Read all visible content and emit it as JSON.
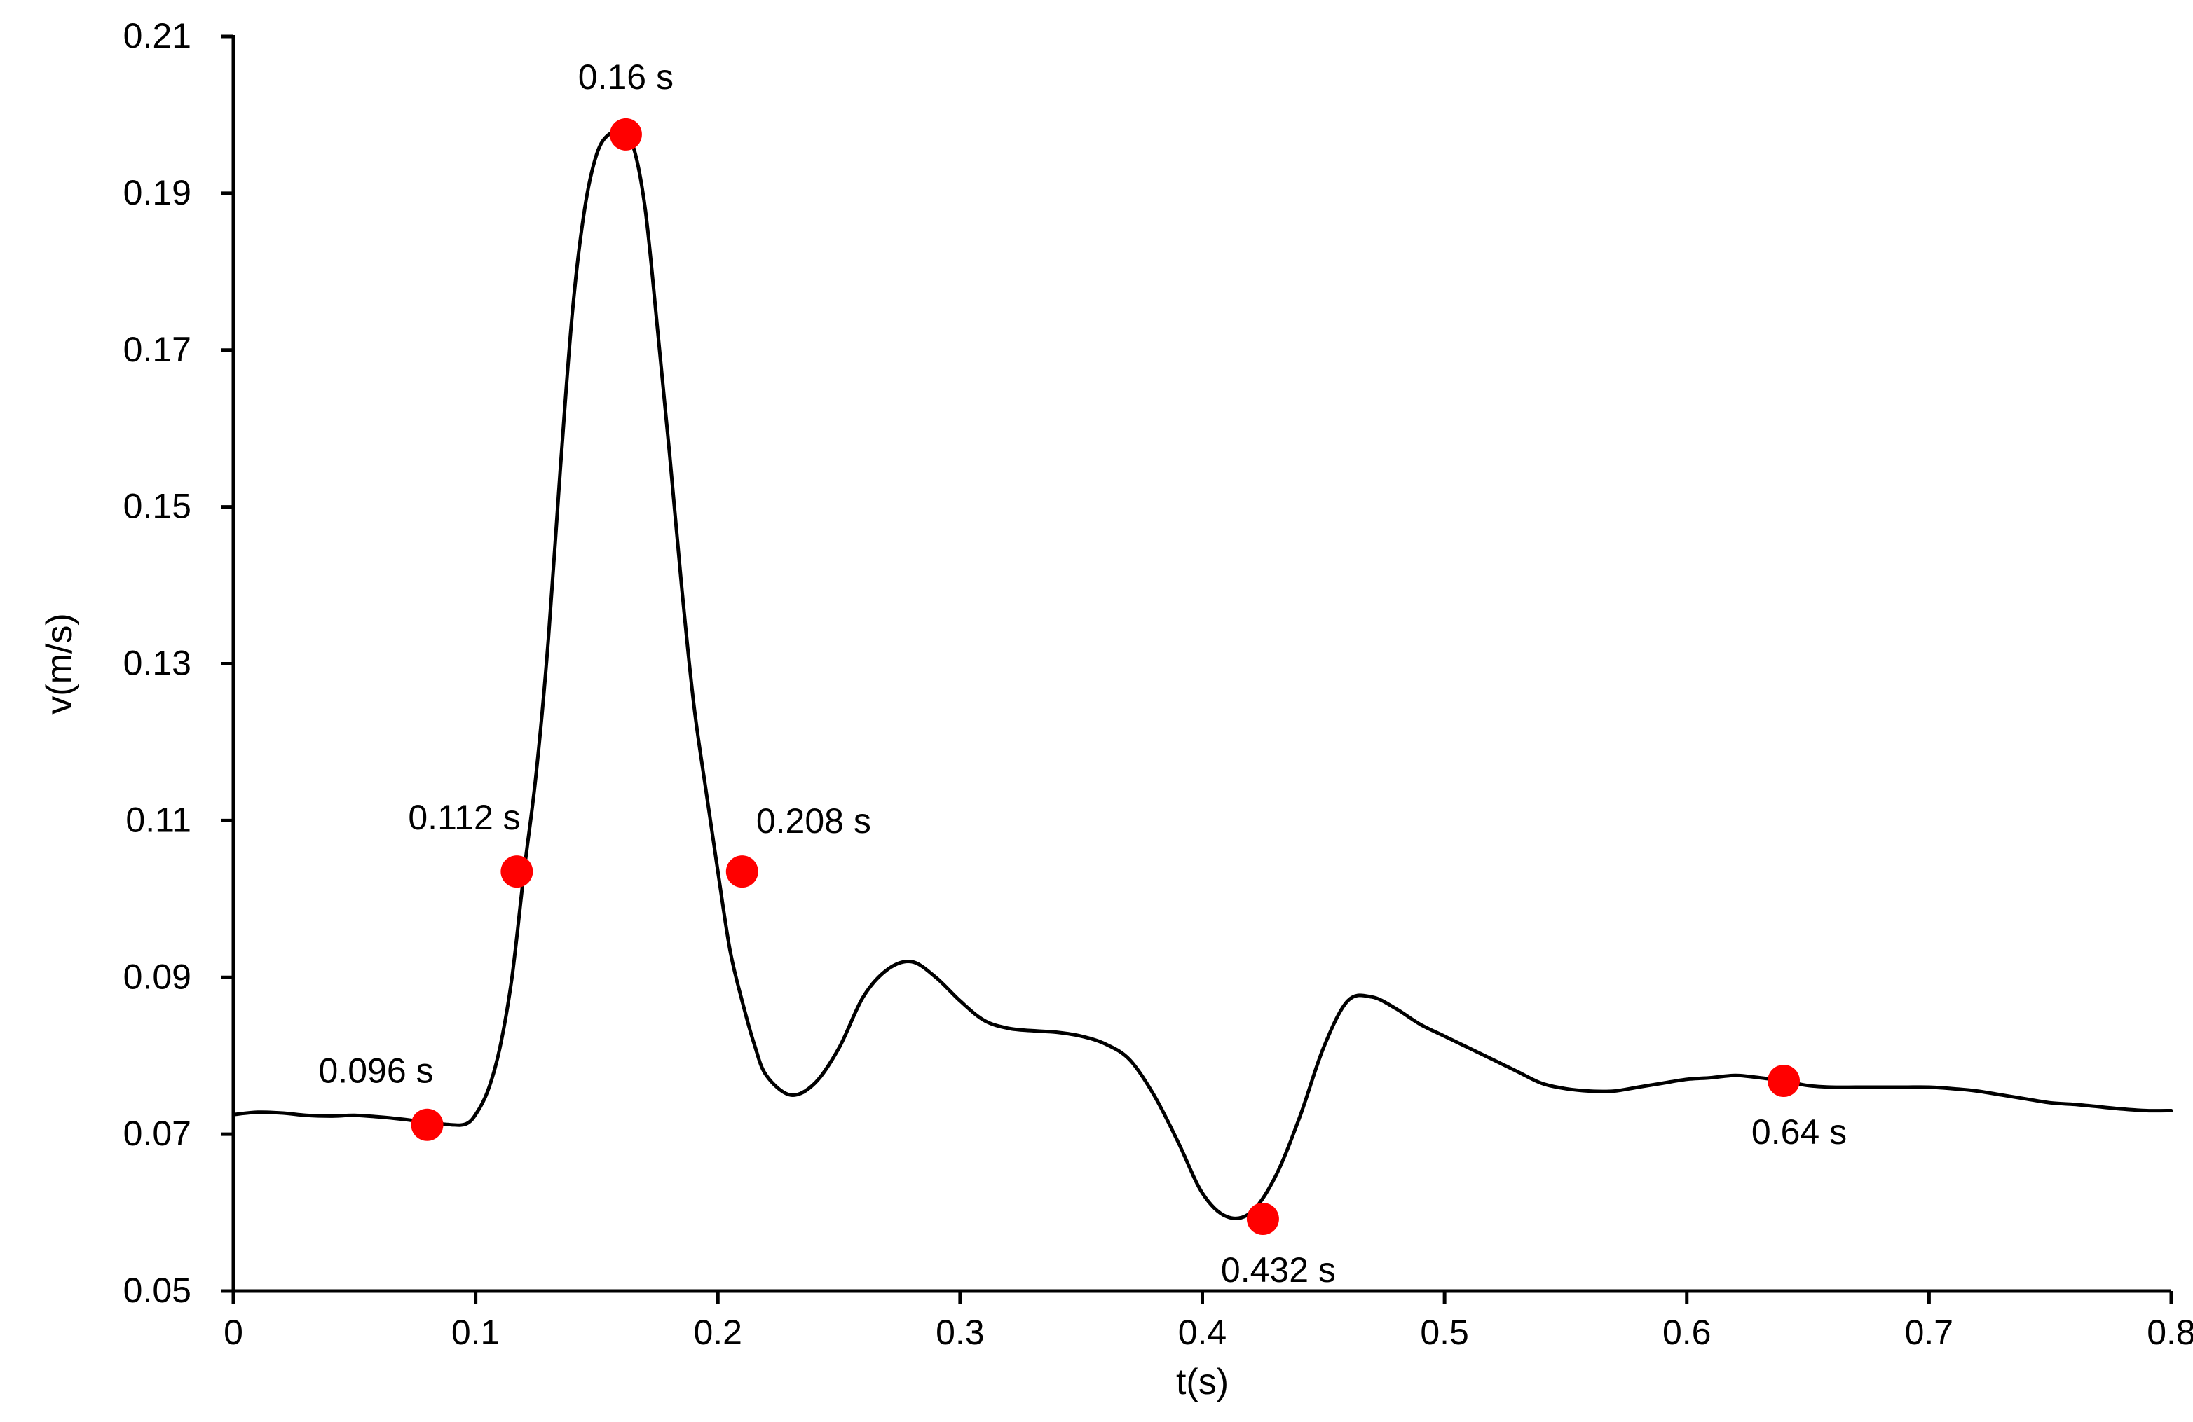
{
  "chart_data": {
    "type": "line",
    "title": "",
    "xlabel": "t(s)",
    "ylabel": "v(m/s)",
    "xlim": [
      0,
      0.8
    ],
    "ylim": [
      0.05,
      0.21
    ],
    "xticks": [
      0,
      0.1,
      0.2,
      0.3,
      0.4,
      0.5,
      0.6,
      0.7,
      0.8
    ],
    "xtick_labels": [
      "0",
      "0.1",
      "0.2",
      "0.3",
      "0.4",
      "0.5",
      "0.6",
      "0.7",
      "0.8"
    ],
    "yticks": [
      0.05,
      0.07,
      0.09,
      0.11,
      0.13,
      0.15,
      0.17,
      0.19,
      0.21
    ],
    "ytick_labels": [
      "0.05",
      "0.07",
      "0.09",
      "0.11",
      "0.13",
      "0.15",
      "0.17",
      "0.19",
      "0.21"
    ],
    "grid": false,
    "legend": "none",
    "line_color": "#000000",
    "marker_color": "#ff0000",
    "series": [
      {
        "x": [
          0,
          0.01,
          0.02,
          0.03,
          0.04,
          0.05,
          0.06,
          0.07,
          0.08,
          0.09,
          0.096,
          0.1,
          0.105,
          0.11,
          0.115,
          0.12,
          0.125,
          0.13,
          0.135,
          0.14,
          0.145,
          0.15,
          0.155,
          0.16,
          0.165,
          0.17,
          0.175,
          0.18,
          0.185,
          0.19,
          0.195,
          0.2,
          0.205,
          0.21,
          0.215,
          0.22,
          0.23,
          0.24,
          0.25,
          0.26,
          0.27,
          0.28,
          0.29,
          0.3,
          0.31,
          0.32,
          0.33,
          0.34,
          0.35,
          0.36,
          0.37,
          0.38,
          0.39,
          0.4,
          0.41,
          0.42,
          0.43,
          0.44,
          0.45,
          0.46,
          0.47,
          0.48,
          0.49,
          0.5,
          0.51,
          0.52,
          0.53,
          0.54,
          0.55,
          0.56,
          0.57,
          0.58,
          0.59,
          0.6,
          0.61,
          0.62,
          0.63,
          0.64,
          0.65,
          0.66,
          0.67,
          0.68,
          0.69,
          0.7,
          0.71,
          0.72,
          0.73,
          0.74,
          0.75,
          0.76,
          0.77,
          0.78,
          0.79,
          0.8
        ],
        "y": [
          0.0725,
          0.0728,
          0.0727,
          0.0724,
          0.0723,
          0.0724,
          0.0722,
          0.0719,
          0.0715,
          0.0712,
          0.0713,
          0.0725,
          0.0755,
          0.081,
          0.09,
          0.1035,
          0.116,
          0.133,
          0.155,
          0.175,
          0.188,
          0.195,
          0.1975,
          0.1975,
          0.196,
          0.188,
          0.173,
          0.157,
          0.14,
          0.125,
          0.114,
          0.1035,
          0.0935,
          0.087,
          0.0815,
          0.0775,
          0.075,
          0.0765,
          0.081,
          0.0875,
          0.091,
          0.092,
          0.09,
          0.087,
          0.0845,
          0.0835,
          0.0832,
          0.083,
          0.0825,
          0.0815,
          0.0795,
          0.075,
          0.069,
          0.0625,
          0.0595,
          0.06,
          0.0645,
          0.072,
          0.081,
          0.087,
          0.0875,
          0.086,
          0.084,
          0.0825,
          0.081,
          0.0795,
          0.078,
          0.0765,
          0.0758,
          0.0755,
          0.0755,
          0.076,
          0.0765,
          0.077,
          0.0772,
          0.0775,
          0.0772,
          0.0768,
          0.0762,
          0.076,
          0.076,
          0.076,
          0.076,
          0.076,
          0.0758,
          0.0755,
          0.075,
          0.0745,
          0.074,
          0.0738,
          0.0735,
          0.0732,
          0.073,
          0.073
        ]
      }
    ],
    "annotations": [
      {
        "x": 0.08,
        "y": 0.0712,
        "label": "0.096 s",
        "label_pos": "upper-left"
      },
      {
        "x": 0.117,
        "y": 0.1035,
        "label": "0.112 s",
        "label_pos": "upper-left"
      },
      {
        "x": 0.162,
        "y": 0.1975,
        "label": "0.16 s",
        "label_pos": "above"
      },
      {
        "x": 0.21,
        "y": 0.1035,
        "label": "0.208 s",
        "label_pos": "upper-right"
      },
      {
        "x": 0.425,
        "y": 0.0592,
        "label": "0.432 s",
        "label_pos": "below"
      },
      {
        "x": 0.64,
        "y": 0.0768,
        "label": "0.64 s",
        "label_pos": "below"
      }
    ]
  }
}
